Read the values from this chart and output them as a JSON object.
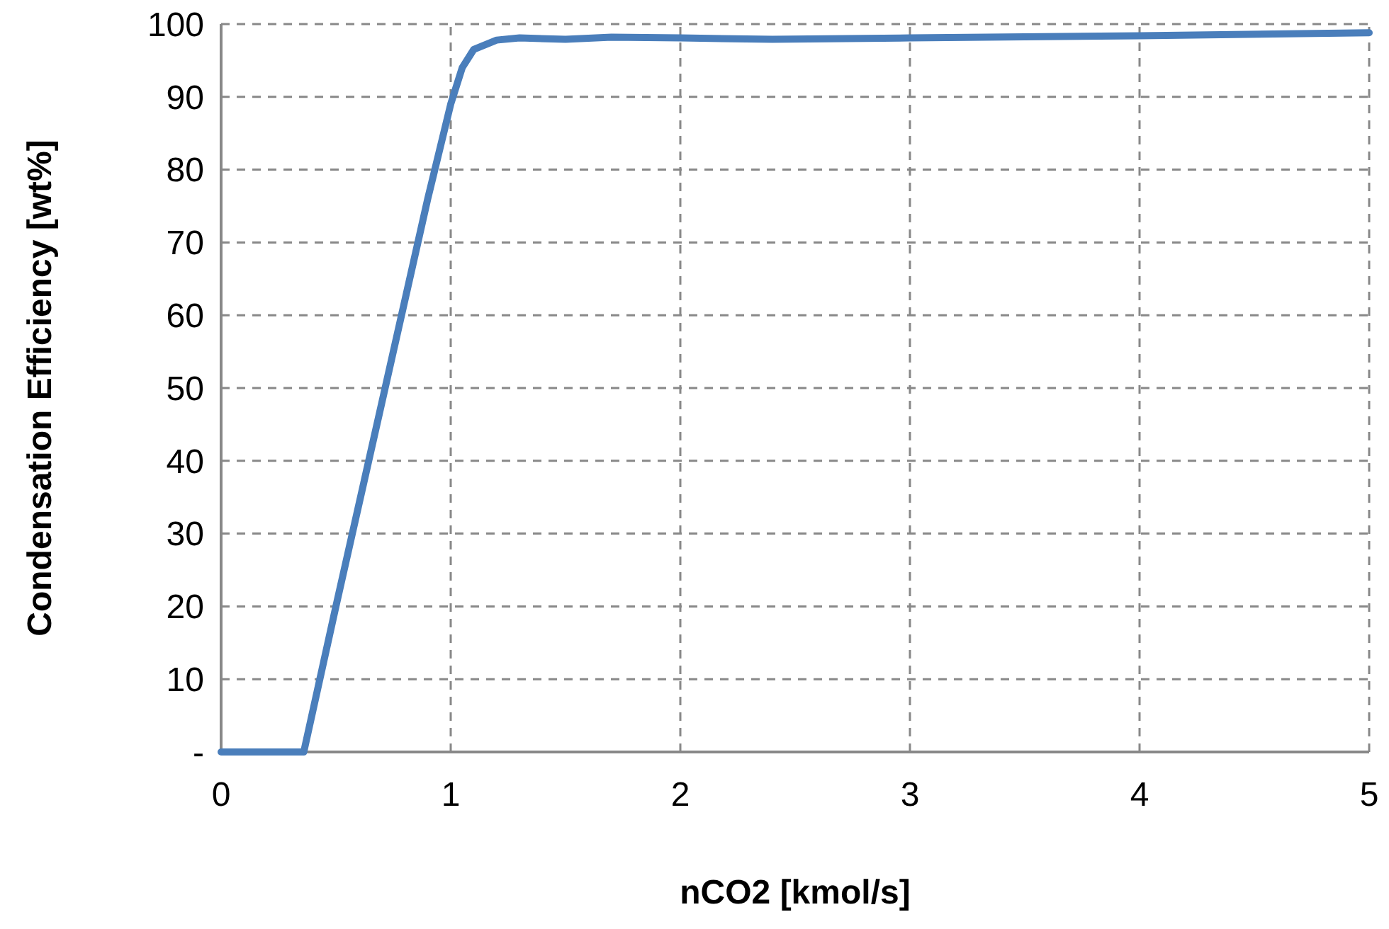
{
  "chart_data": {
    "type": "line",
    "xlabel": "nCO2 [kmol/s]",
    "ylabel": "Condensation Efficiency [wt%]",
    "x": [
      0,
      0.36,
      0.5,
      0.7,
      0.9,
      1.0,
      1.05,
      1.1,
      1.2,
      1.3,
      1.5,
      1.7,
      2,
      2.4,
      3,
      4,
      5
    ],
    "series": [
      {
        "color": "#4a7ebb",
        "values": [
          0,
          0,
          20,
          48,
          76,
          89,
          94,
          96.5,
          97.8,
          98.1,
          97.9,
          98.2,
          98.1,
          97.9,
          98.1,
          98.4,
          98.8
        ]
      }
    ],
    "xlim": [
      0,
      5
    ],
    "xticks": [
      0,
      1,
      2,
      3,
      4,
      5
    ],
    "ylim": [
      0,
      100
    ],
    "yticks": [
      {
        "value": 0,
        "label": "-"
      },
      10,
      20,
      30,
      40,
      50,
      60,
      70,
      80,
      90,
      100
    ],
    "grid": true,
    "line_style": "solid",
    "marker": "none"
  }
}
